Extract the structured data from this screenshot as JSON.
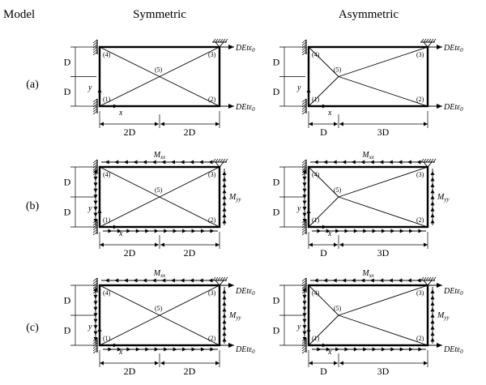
{
  "headers": {
    "model": "Model",
    "symmetric": "Symmetric",
    "asymmetric": "Asymmetric"
  },
  "rows": [
    {
      "label": "(a)"
    },
    {
      "label": "(b)"
    },
    {
      "label": "(c)"
    }
  ],
  "nodes": [
    "(1)",
    "(2)",
    "(3)",
    "(4)",
    "(5)"
  ],
  "dimensions": {
    "height": "D",
    "sym_left": "2D",
    "sym_right": "2D",
    "asym_left": "D",
    "asym_right": "3D"
  },
  "axes": {
    "x": "x",
    "y": "y"
  },
  "loads": {
    "strain": "DEtε",
    "strain_sub": "0",
    "moment_x": "M",
    "moment_x_sub": "xx",
    "moment_y": "M",
    "moment_y_sub": "yy"
  }
}
